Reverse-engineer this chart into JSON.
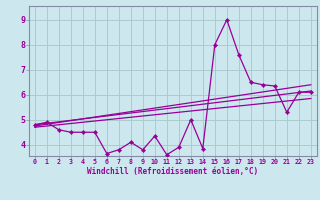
{
  "title": "",
  "xlabel": "Windchill (Refroidissement éolien,°C)",
  "ylabel": "",
  "bg_color": "#cce8ee",
  "grid_color": "#aacccc",
  "line_color": "#990099",
  "spine_color": "#8888aa",
  "x_ticks": [
    0,
    1,
    2,
    3,
    4,
    5,
    6,
    7,
    8,
    9,
    10,
    11,
    12,
    13,
    14,
    15,
    16,
    17,
    18,
    19,
    20,
    21,
    22,
    23
  ],
  "y_ticks": [
    4,
    5,
    6,
    7,
    8,
    9
  ],
  "ylim": [
    3.55,
    9.55
  ],
  "xlim": [
    -0.5,
    23.5
  ],
  "main_x": [
    0,
    1,
    2,
    3,
    4,
    5,
    6,
    7,
    8,
    9,
    10,
    11,
    12,
    13,
    14,
    15,
    16,
    17,
    18,
    19,
    20,
    21,
    22,
    23
  ],
  "main_y": [
    4.8,
    4.9,
    4.6,
    4.5,
    4.5,
    4.5,
    3.65,
    3.8,
    4.1,
    3.8,
    4.35,
    3.6,
    3.9,
    5.0,
    3.85,
    8.0,
    9.0,
    7.6,
    6.5,
    6.4,
    6.35,
    5.3,
    6.1,
    6.1
  ],
  "trend1_x": [
    0,
    23
  ],
  "trend1_y": [
    4.8,
    6.15
  ],
  "trend2_x": [
    0,
    23
  ],
  "trend2_y": [
    4.75,
    6.4
  ],
  "trend3_x": [
    0,
    23
  ],
  "trend3_y": [
    4.7,
    5.85
  ]
}
